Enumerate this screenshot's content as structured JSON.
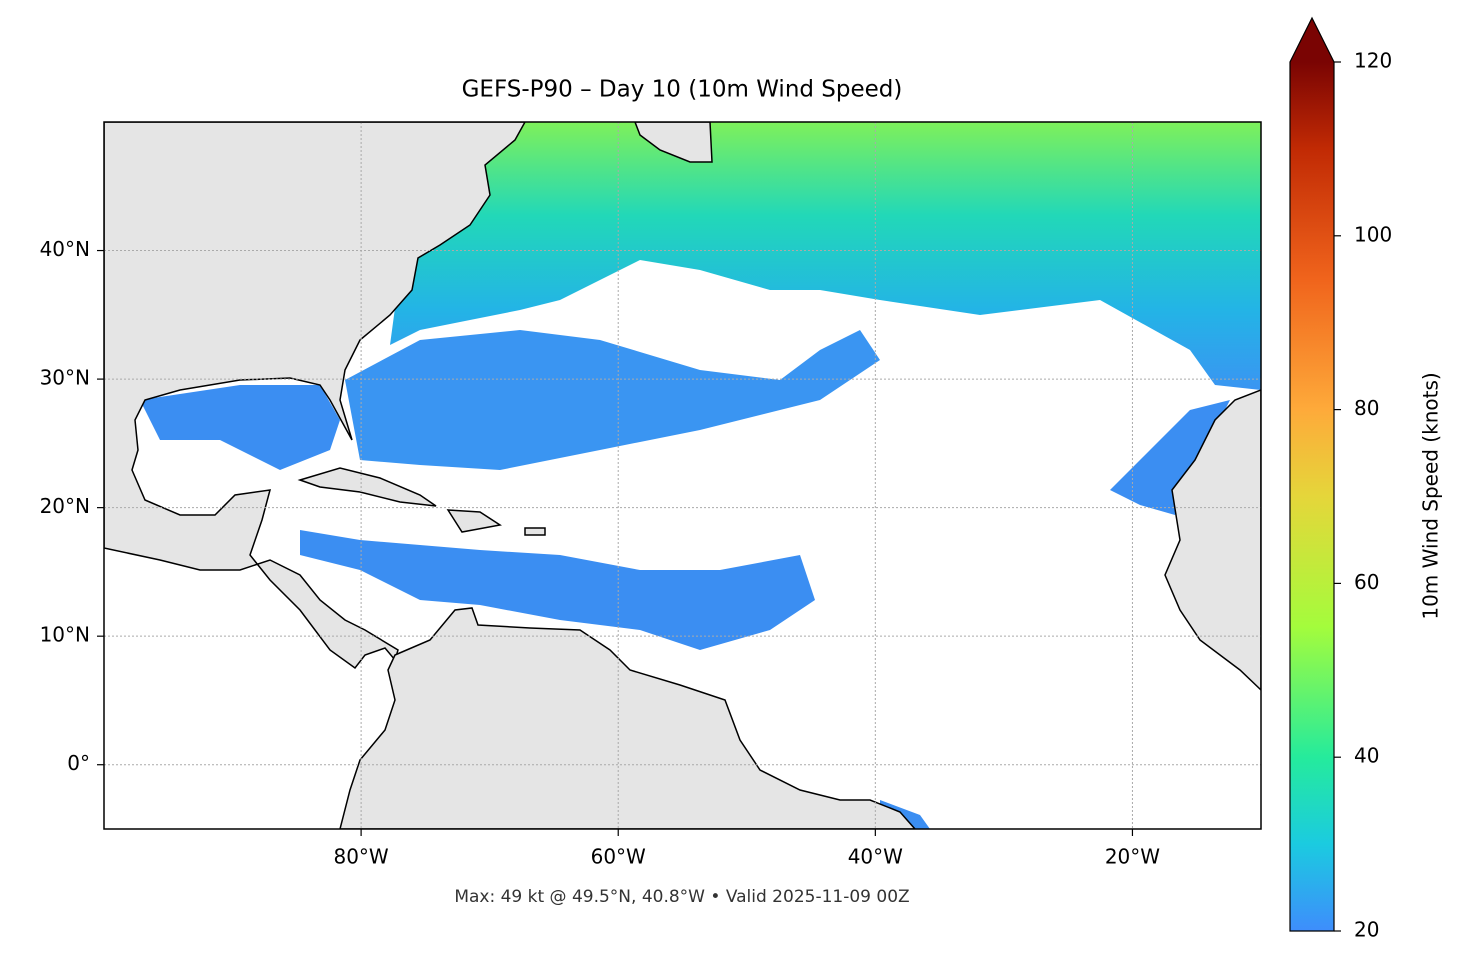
{
  "chart_data": {
    "type": "map",
    "title": "GEFS-P90 – Day 10 (10m Wind Speed)",
    "footnote": "Max: 49 kt @ 49.5°N, 40.8°W • Valid 2025-11-09 00Z",
    "xlim": [
      -100,
      -10
    ],
    "ylim": [
      -5,
      50
    ],
    "xticks": [
      {
        "value": -80,
        "label": "80°W"
      },
      {
        "value": -60,
        "label": "60°W"
      },
      {
        "value": -40,
        "label": "40°W"
      },
      {
        "value": -20,
        "label": "20°W"
      }
    ],
    "yticks": [
      {
        "value": 0,
        "label": "0°"
      },
      {
        "value": 10,
        "label": "10°N"
      },
      {
        "value": 20,
        "label": "20°N"
      },
      {
        "value": 30,
        "label": "30°N"
      },
      {
        "value": 40,
        "label": "40°N"
      }
    ],
    "grid": true,
    "colorbar": {
      "label": "10m Wind Speed (knots)",
      "lim": [
        20,
        120
      ],
      "ticks": [
        20,
        40,
        60,
        80,
        100,
        120
      ],
      "extend": "max"
    }
  }
}
